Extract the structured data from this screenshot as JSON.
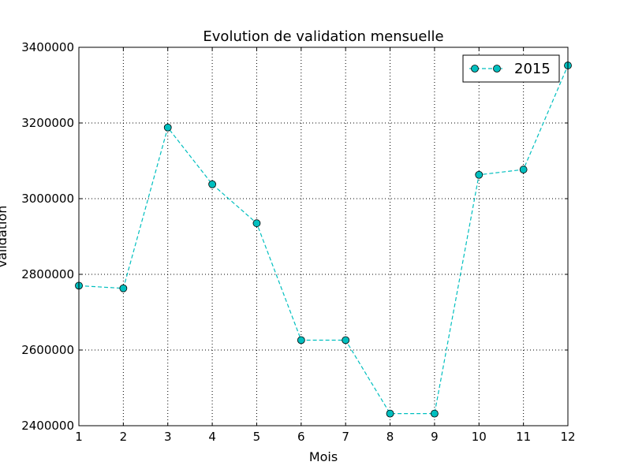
{
  "chart_data": {
    "type": "line",
    "title": "Evolution de validation mensuelle",
    "xlabel": "Mois",
    "ylabel": "validation",
    "x": [
      1,
      2,
      3,
      4,
      5,
      6,
      7,
      8,
      9,
      10,
      11,
      12
    ],
    "xlim": [
      1,
      12
    ],
    "ylim": [
      2400000,
      3400000
    ],
    "x_ticks": [
      "1",
      "2",
      "3",
      "4",
      "5",
      "6",
      "7",
      "8",
      "9",
      "10",
      "11",
      "12"
    ],
    "y_ticks": [
      {
        "value": 2400000,
        "label": "2400000"
      },
      {
        "value": 2600000,
        "label": "2600000"
      },
      {
        "value": 2800000,
        "label": "2800000"
      },
      {
        "value": 3000000,
        "label": "3000000"
      },
      {
        "value": 3200000,
        "label": "3200000"
      },
      {
        "value": 3400000,
        "label": "3400000"
      }
    ],
    "grid": true,
    "legend_position": "top-right",
    "series": [
      {
        "name": "2015",
        "color": "#00bfbf",
        "line_style": "dashed",
        "marker": "circle",
        "values": [
          2770000,
          2763000,
          3188000,
          3038000,
          2935000,
          2626000,
          2626000,
          2432000,
          2432000,
          3063000,
          3077000,
          3352000
        ]
      }
    ]
  }
}
